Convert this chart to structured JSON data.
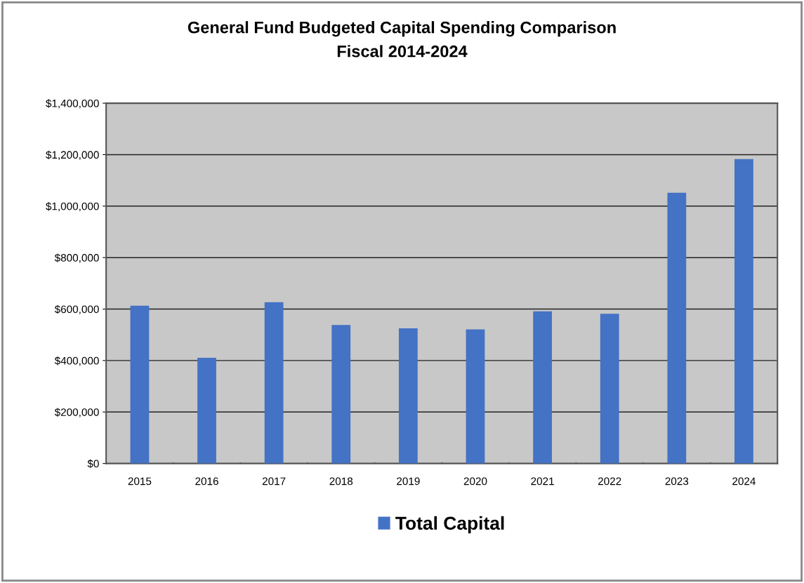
{
  "chart_data": {
    "type": "bar",
    "title": "General Fund Budgeted Capital Spending Comparison\nFiscal 2014-2024",
    "categories": [
      "2015",
      "2016",
      "2017",
      "2018",
      "2019",
      "2020",
      "2021",
      "2022",
      "2023",
      "2024"
    ],
    "series": [
      {
        "name": "Total Capital",
        "color": "#4472c4",
        "values": [
          613000,
          411000,
          627000,
          538000,
          525000,
          521000,
          591000,
          582000,
          1052000,
          1183000
        ]
      }
    ],
    "ylim": [
      0,
      1400000
    ],
    "yticks": [
      {
        "value": 0,
        "label": "$0"
      },
      {
        "value": 200000,
        "label": "$200,000"
      },
      {
        "value": 400000,
        "label": "$400,000"
      },
      {
        "value": 600000,
        "label": "$600,000"
      },
      {
        "value": 800000,
        "label": "$800,000"
      },
      {
        "value": 1000000,
        "label": "$1,000,000"
      },
      {
        "value": 1200000,
        "label": "$1,200,000"
      },
      {
        "value": 1400000,
        "label": "$1,400,000"
      }
    ],
    "grid": "y",
    "legend": "bottom"
  }
}
